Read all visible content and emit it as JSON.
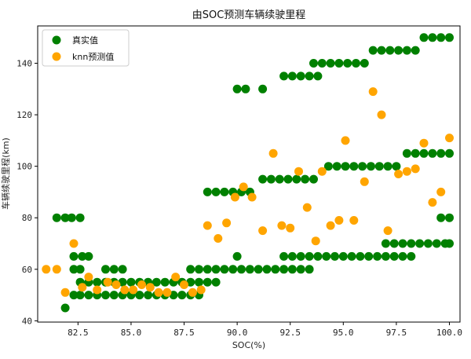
{
  "chart_data": {
    "type": "scatter",
    "title": "由SOC预测车辆续驶里程",
    "xlabel": "SOC(%)",
    "ylabel": "车辆续驶里程(km)",
    "xlim": [
      80.6,
      100.5
    ],
    "ylim": [
      39.5,
      154.5
    ],
    "xticks": [
      82.5,
      85.0,
      87.5,
      90.0,
      92.5,
      95.0,
      97.5,
      100.0
    ],
    "xtick_labels": [
      "82.5",
      "85.0",
      "87.5",
      "90.0",
      "92.5",
      "95.0",
      "97.5",
      "100.0"
    ],
    "yticks": [
      40,
      60,
      80,
      100,
      120,
      140
    ],
    "ytick_labels": [
      "40",
      "60",
      "80",
      "100",
      "120",
      "140"
    ],
    "grid": false,
    "legend_position": "top-left",
    "colors": {
      "actual": "#008000",
      "predicted": "#FFA500"
    },
    "series": [
      {
        "name": "真实值",
        "color": "#008000",
        "points": [
          [
            81.5,
            80
          ],
          [
            81.9,
            80
          ],
          [
            82.2,
            80
          ],
          [
            82.6,
            80
          ],
          [
            81.9,
            45
          ],
          [
            82.3,
            50
          ],
          [
            82.6,
            50
          ],
          [
            83.0,
            50
          ],
          [
            83.4,
            50
          ],
          [
            83.8,
            50
          ],
          [
            84.2,
            50
          ],
          [
            84.6,
            50
          ],
          [
            85.0,
            50
          ],
          [
            85.4,
            50
          ],
          [
            85.8,
            50
          ],
          [
            86.2,
            50
          ],
          [
            86.6,
            50
          ],
          [
            87.0,
            50
          ],
          [
            87.4,
            50
          ],
          [
            87.8,
            50
          ],
          [
            88.2,
            50
          ],
          [
            82.6,
            55
          ],
          [
            83.0,
            55
          ],
          [
            83.4,
            55
          ],
          [
            83.8,
            55
          ],
          [
            84.2,
            55
          ],
          [
            84.6,
            55
          ],
          [
            85.0,
            55
          ],
          [
            85.4,
            55
          ],
          [
            85.8,
            55
          ],
          [
            86.2,
            55
          ],
          [
            86.6,
            55
          ],
          [
            87.0,
            55
          ],
          [
            87.4,
            55
          ],
          [
            87.8,
            55
          ],
          [
            88.2,
            55
          ],
          [
            88.6,
            55
          ],
          [
            89.0,
            55
          ],
          [
            82.3,
            60
          ],
          [
            82.6,
            60
          ],
          [
            83.8,
            60
          ],
          [
            84.2,
            60
          ],
          [
            84.6,
            60
          ],
          [
            82.3,
            65
          ],
          [
            82.7,
            65
          ],
          [
            83.0,
            65
          ],
          [
            87.8,
            60
          ],
          [
            88.2,
            60
          ],
          [
            88.6,
            60
          ],
          [
            89.0,
            60
          ],
          [
            89.4,
            60
          ],
          [
            89.8,
            60
          ],
          [
            90.2,
            60
          ],
          [
            90.6,
            60
          ],
          [
            91.0,
            60
          ],
          [
            91.4,
            60
          ],
          [
            91.8,
            60
          ],
          [
            92.2,
            60
          ],
          [
            92.6,
            60
          ],
          [
            93.0,
            60
          ],
          [
            93.4,
            60
          ],
          [
            90.0,
            65
          ],
          [
            88.6,
            90
          ],
          [
            89.0,
            90
          ],
          [
            89.4,
            90
          ],
          [
            89.8,
            90
          ],
          [
            90.2,
            90
          ],
          [
            90.6,
            90
          ],
          [
            90.0,
            130
          ],
          [
            90.4,
            130
          ],
          [
            91.2,
            130
          ],
          [
            91.2,
            95
          ],
          [
            91.6,
            95
          ],
          [
            92.0,
            95
          ],
          [
            92.4,
            95
          ],
          [
            92.8,
            95
          ],
          [
            93.2,
            95
          ],
          [
            93.6,
            95
          ],
          [
            92.2,
            135
          ],
          [
            92.6,
            135
          ],
          [
            93.0,
            135
          ],
          [
            93.4,
            135
          ],
          [
            93.8,
            135
          ],
          [
            93.6,
            140
          ],
          [
            94.0,
            140
          ],
          [
            94.4,
            140
          ],
          [
            94.8,
            140
          ],
          [
            95.2,
            140
          ],
          [
            95.6,
            140
          ],
          [
            96.0,
            140
          ],
          [
            92.2,
            65
          ],
          [
            92.6,
            65
          ],
          [
            93.0,
            65
          ],
          [
            93.4,
            65
          ],
          [
            93.8,
            65
          ],
          [
            94.2,
            65
          ],
          [
            94.6,
            65
          ],
          [
            95.0,
            65
          ],
          [
            95.4,
            65
          ],
          [
            95.8,
            65
          ],
          [
            96.2,
            65
          ],
          [
            96.6,
            65
          ],
          [
            97.0,
            65
          ],
          [
            97.4,
            65
          ],
          [
            97.8,
            65
          ],
          [
            98.2,
            65
          ],
          [
            94.3,
            100
          ],
          [
            94.7,
            100
          ],
          [
            95.1,
            100
          ],
          [
            95.5,
            100
          ],
          [
            95.9,
            100
          ],
          [
            96.3,
            100
          ],
          [
            96.7,
            100
          ],
          [
            97.1,
            100
          ],
          [
            97.5,
            100
          ],
          [
            96.4,
            145
          ],
          [
            96.8,
            145
          ],
          [
            97.2,
            145
          ],
          [
            97.6,
            145
          ],
          [
            98.0,
            145
          ],
          [
            98.4,
            145
          ],
          [
            97.0,
            70
          ],
          [
            97.4,
            70
          ],
          [
            97.8,
            70
          ],
          [
            98.2,
            70
          ],
          [
            98.6,
            70
          ],
          [
            99.0,
            70
          ],
          [
            99.4,
            70
          ],
          [
            99.8,
            70
          ],
          [
            100.0,
            70
          ],
          [
            98.0,
            105
          ],
          [
            98.4,
            105
          ],
          [
            98.8,
            105
          ],
          [
            99.2,
            105
          ],
          [
            99.6,
            105
          ],
          [
            100.0,
            105
          ],
          [
            98.8,
            150
          ],
          [
            99.2,
            150
          ],
          [
            99.6,
            150
          ],
          [
            100.0,
            150
          ],
          [
            99.6,
            80
          ],
          [
            100.0,
            80
          ]
        ]
      },
      {
        "name": "knn预测值",
        "color": "#FFA500",
        "points": [
          [
            81.0,
            60
          ],
          [
            81.5,
            60
          ],
          [
            81.9,
            51
          ],
          [
            82.3,
            70
          ],
          [
            82.7,
            53
          ],
          [
            83.0,
            57
          ],
          [
            83.4,
            52
          ],
          [
            83.9,
            55
          ],
          [
            84.3,
            54
          ],
          [
            84.7,
            52
          ],
          [
            85.1,
            52
          ],
          [
            85.5,
            54
          ],
          [
            85.9,
            53
          ],
          [
            86.3,
            51
          ],
          [
            86.7,
            51
          ],
          [
            87.1,
            57
          ],
          [
            87.5,
            54
          ],
          [
            87.9,
            51
          ],
          [
            88.3,
            52
          ],
          [
            88.6,
            77
          ],
          [
            89.1,
            72
          ],
          [
            89.5,
            78
          ],
          [
            89.9,
            88
          ],
          [
            90.3,
            92
          ],
          [
            90.7,
            88
          ],
          [
            91.2,
            75
          ],
          [
            91.7,
            105
          ],
          [
            92.1,
            77
          ],
          [
            92.5,
            76
          ],
          [
            92.9,
            98
          ],
          [
            93.3,
            84
          ],
          [
            93.7,
            71
          ],
          [
            94.0,
            98
          ],
          [
            94.4,
            77
          ],
          [
            94.8,
            79
          ],
          [
            95.1,
            110
          ],
          [
            95.5,
            79
          ],
          [
            96.0,
            94
          ],
          [
            96.4,
            129
          ],
          [
            96.8,
            120
          ],
          [
            97.1,
            75
          ],
          [
            97.6,
            97
          ],
          [
            98.0,
            98
          ],
          [
            98.4,
            99
          ],
          [
            98.8,
            109
          ],
          [
            99.2,
            86
          ],
          [
            99.6,
            90
          ],
          [
            100.0,
            111
          ]
        ]
      }
    ]
  }
}
